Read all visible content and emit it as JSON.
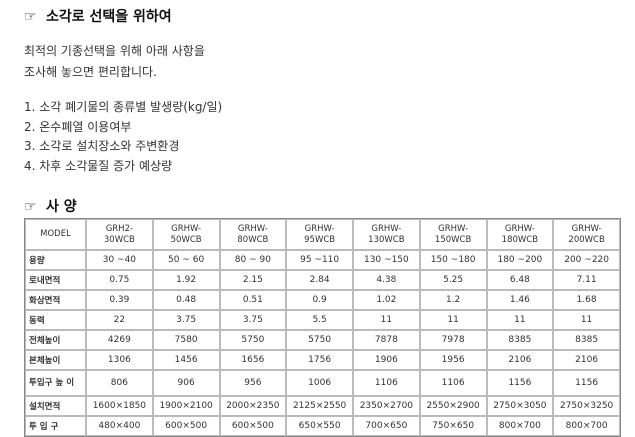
{
  "section1": {
    "icon": "pointing-hand-icon",
    "title": "소각로 선택을 위하여"
  },
  "intro": {
    "line1": "최적의 기종선택을 위해 아래 사항을",
    "line2": "조사해 놓으면 편리합니다."
  },
  "checklist": [
    "1. 소각 폐기물의 종류별 발생량(kg/일)",
    "2. 온수폐열 이용여부",
    "3. 소각로 설치장소와 주변환경",
    "4. 차후 소각물질 증가 예상량"
  ],
  "section2": {
    "icon": "pointing-hand-icon",
    "title": "사 양"
  },
  "spec_table": {
    "header_label": "MODEL",
    "models": [
      [
        "GRH2-",
        "30WCB"
      ],
      [
        "GRHW-",
        "50WCB"
      ],
      [
        "GRHW-",
        "80WCB"
      ],
      [
        "GRHW-",
        "95WCB"
      ],
      [
        "GRHW-",
        "130WCB"
      ],
      [
        "GRHW-",
        "150WCB"
      ],
      [
        "GRHW-",
        "180WCB"
      ],
      [
        "GRHW-",
        "200WCB"
      ]
    ],
    "rows": [
      {
        "label": "용량",
        "values": [
          "30 ~40",
          "50 ~ 60",
          "80 ~ 90",
          "95 ~110",
          "130 ~150",
          "150 ~180",
          "180 ~200",
          "200 ~220"
        ]
      },
      {
        "label": "로내면적",
        "values": [
          "0.75",
          "1.92",
          "2.15",
          "2.84",
          "4.38",
          "5.25",
          "6.48",
          "7.11"
        ]
      },
      {
        "label": "화상면적",
        "values": [
          "0.39",
          "0.48",
          "0.51",
          "0.9",
          "1.02",
          "1.2",
          "1.46",
          "1.68"
        ]
      },
      {
        "label": "동력",
        "values": [
          "22",
          "3.75",
          "3.75",
          "5.5",
          "11",
          "11",
          "11",
          "11"
        ]
      },
      {
        "label": "전체높이",
        "values": [
          "4269",
          "7580",
          "5750",
          "5750",
          "7878",
          "7978",
          "8385",
          "8385"
        ]
      },
      {
        "label": "본체높이",
        "values": [
          "1306",
          "1456",
          "1656",
          "1756",
          "1906",
          "1956",
          "2106",
          "2106"
        ]
      },
      {
        "label": "투입구 높 이",
        "values": [
          "806",
          "906",
          "956",
          "1006",
          "1106",
          "1106",
          "1156",
          "1156"
        ]
      },
      {
        "label": "설치면적",
        "values": [
          "1600×1850",
          "1900×2100",
          "2000×2350",
          "2125×2550",
          "2350×2700",
          "2550×2900",
          "2750×3050",
          "2750×3250"
        ]
      },
      {
        "label": "투 입 구",
        "values": [
          "480×400",
          "600×500",
          "600×500",
          "650×550",
          "700×650",
          "750×650",
          "800×700",
          "800×700"
        ]
      }
    ]
  }
}
